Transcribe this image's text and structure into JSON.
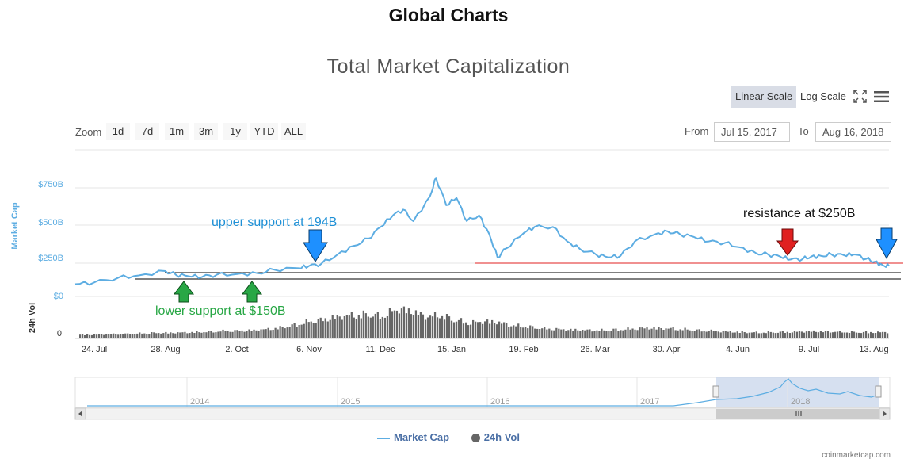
{
  "page_title": "Global Charts",
  "chart_title": "Total Market Capitalization",
  "controls": {
    "linear_scale": "Linear Scale",
    "log_scale": "Log Scale",
    "fullscreen_icon": "fullscreen-icon",
    "menu_icon": "hamburger-menu-icon",
    "zoom_label": "Zoom",
    "zoom_buttons": [
      "1d",
      "7d",
      "1m",
      "3m",
      "1y",
      "YTD",
      "ALL"
    ],
    "from_label": "From",
    "from_value": "Jul 15, 2017",
    "to_label": "To",
    "to_value": "Aug 16, 2018"
  },
  "legend": {
    "market_cap": "Market Cap",
    "volume": "24h Vol"
  },
  "credits": "coinmarketcap.com",
  "colors": {
    "market_cap": "#5dade2",
    "volume": "#666666",
    "support_up": "#28a745",
    "support_down": "#1e90ff",
    "resistance": "#e02020",
    "resistance_line": "#e02020",
    "navigator_fill": "#c5d3ea"
  },
  "annotations": {
    "upper_support": "upper support at 194B",
    "lower_support": "lower support at $150B",
    "resistance": "resistance at $250B"
  },
  "chart_data": {
    "type": "line",
    "title": "Total Market Capitalization",
    "ylabel": "Market Cap",
    "ylabel2": "24h Vol",
    "y_ticks": [
      "$0",
      "$250B",
      "$500B",
      "$750B"
    ],
    "ylim": [
      0,
      900
    ],
    "y2_ticks": [
      "0"
    ],
    "x_ticks": [
      "24. Jul",
      "28. Aug",
      "2. Oct",
      "6. Nov",
      "11. Dec",
      "15. Jan",
      "19. Feb",
      "26. Mar",
      "30. Apr",
      "4. Jun",
      "9. Jul",
      "13. Aug"
    ],
    "xlim": [
      "2017-07-15",
      "2018-08-16"
    ],
    "series": [
      {
        "name": "Market Cap",
        "x": [
          "2017-07-15",
          "2017-07-24",
          "2017-08-05",
          "2017-08-15",
          "2017-08-28",
          "2017-09-02",
          "2017-09-08",
          "2017-09-15",
          "2017-09-22",
          "2017-10-02",
          "2017-10-12",
          "2017-10-20",
          "2017-11-01",
          "2017-11-06",
          "2017-11-12",
          "2017-11-20",
          "2017-11-28",
          "2017-12-05",
          "2017-12-11",
          "2017-12-17",
          "2017-12-22",
          "2017-12-27",
          "2018-01-04",
          "2018-01-07",
          "2018-01-12",
          "2018-01-17",
          "2018-01-22",
          "2018-01-28",
          "2018-02-02",
          "2018-02-06",
          "2018-02-10",
          "2018-02-19",
          "2018-02-24",
          "2018-03-05",
          "2018-03-12",
          "2018-03-18",
          "2018-03-26",
          "2018-04-01",
          "2018-04-07",
          "2018-04-14",
          "2018-04-24",
          "2018-04-30",
          "2018-05-06",
          "2018-05-13",
          "2018-05-20",
          "2018-05-28",
          "2018-06-04",
          "2018-06-12",
          "2018-06-18",
          "2018-06-24",
          "2018-06-29",
          "2018-07-05",
          "2018-07-09",
          "2018-07-14",
          "2018-07-19",
          "2018-07-25",
          "2018-07-30",
          "2018-08-05",
          "2018-08-09",
          "2018-08-13",
          "2018-08-16"
        ],
        "y": [
          85,
          95,
          130,
          145,
          175,
          150,
          140,
          135,
          150,
          155,
          160,
          185,
          195,
          210,
          225,
          290,
          350,
          400,
          480,
          560,
          600,
          520,
          690,
          820,
          630,
          680,
          520,
          560,
          430,
          270,
          330,
          440,
          480,
          480,
          380,
          330,
          290,
          270,
          280,
          380,
          430,
          450,
          430,
          410,
          380,
          370,
          340,
          300,
          290,
          275,
          255,
          260,
          275,
          280,
          290,
          285,
          290,
          260,
          240,
          215,
          210
        ]
      },
      {
        "name": "24h Vol",
        "levels": [
          0.12,
          0.12,
          0.14,
          0.14,
          0.16,
          0.18,
          0.18,
          0.19,
          0.2,
          0.22,
          0.24,
          0.25,
          0.26,
          0.3,
          0.35,
          0.45,
          0.55,
          0.62,
          0.7,
          0.75,
          0.78,
          0.72,
          0.95,
          0.88,
          0.7,
          0.75,
          0.6,
          0.5,
          0.55,
          0.52,
          0.42,
          0.38,
          0.33,
          0.3,
          0.28,
          0.27,
          0.26,
          0.28,
          0.3,
          0.33,
          0.34,
          0.32,
          0.29,
          0.26,
          0.24,
          0.22,
          0.2,
          0.19,
          0.2,
          0.21,
          0.22,
          0.23,
          0.22,
          0.21,
          0.2,
          0.2,
          0.2
        ]
      }
    ],
    "navigator_ticks": [
      "2014",
      "2015",
      "2016",
      "2017",
      "2018"
    ],
    "annotation_levels_usd_billion": {
      "lower_support": 150,
      "upper_support": 194,
      "resistance": 250
    }
  }
}
